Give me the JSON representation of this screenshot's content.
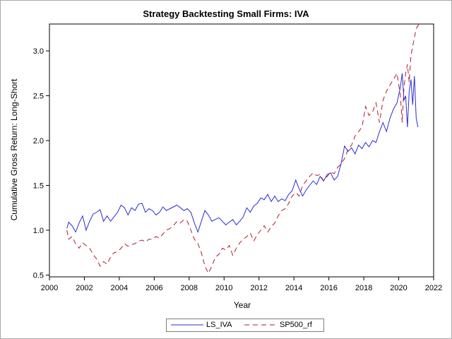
{
  "chart_data": {
    "type": "line",
    "title": "Strategy Backtesting Small Firms: IVA",
    "xlabel": "Year",
    "ylabel": "Cumulative Gross Return: Long-Short",
    "xlim": [
      2000,
      2022
    ],
    "ylim": [
      0.48,
      3.3
    ],
    "x_ticks": [
      2000,
      2002,
      2004,
      2006,
      2008,
      2010,
      2012,
      2014,
      2016,
      2018,
      2020,
      2022
    ],
    "y_ticks": [
      0.5,
      1.0,
      1.5,
      2.0,
      2.5,
      3.0
    ],
    "x_tick_labels": [
      "2000",
      "2002",
      "2004",
      "2006",
      "2008",
      "2010",
      "2012",
      "2014",
      "2016",
      "2018",
      "2020",
      "2022"
    ],
    "y_tick_labels": [
      "0.5",
      "1.0",
      "1.5",
      "2.0",
      "2.5",
      "3.0"
    ],
    "grid": false,
    "legend_position": "bottom",
    "series": [
      {
        "name": "LS_IVA",
        "color": "#2b2bd6",
        "dash": "solid",
        "x": [
          2001.0,
          2001.1,
          2001.3,
          2001.5,
          2001.7,
          2001.9,
          2002.1,
          2002.3,
          2002.5,
          2002.7,
          2002.9,
          2003.1,
          2003.3,
          2003.5,
          2003.7,
          2003.9,
          2004.1,
          2004.3,
          2004.5,
          2004.7,
          2004.9,
          2005.1,
          2005.3,
          2005.5,
          2005.7,
          2005.9,
          2006.1,
          2006.3,
          2006.5,
          2006.7,
          2006.9,
          2007.1,
          2007.3,
          2007.5,
          2007.7,
          2007.9,
          2008.1,
          2008.3,
          2008.5,
          2008.7,
          2008.9,
          2009.1,
          2009.3,
          2009.5,
          2009.7,
          2009.9,
          2010.1,
          2010.3,
          2010.5,
          2010.7,
          2010.9,
          2011.1,
          2011.3,
          2011.5,
          2011.7,
          2011.9,
          2012.1,
          2012.3,
          2012.5,
          2012.7,
          2012.9,
          2013.1,
          2013.3,
          2013.5,
          2013.7,
          2013.9,
          2014.1,
          2014.3,
          2014.5,
          2014.7,
          2014.9,
          2015.1,
          2015.3,
          2015.5,
          2015.7,
          2015.9,
          2016.1,
          2016.3,
          2016.5,
          2016.7,
          2016.9,
          2017.1,
          2017.3,
          2017.5,
          2017.7,
          2017.9,
          2018.1,
          2018.3,
          2018.5,
          2018.7,
          2018.9,
          2019.1,
          2019.3,
          2019.5,
          2019.7,
          2019.9,
          2020.1,
          2020.2,
          2020.3,
          2020.4,
          2020.5,
          2020.6,
          2020.7,
          2020.8,
          2020.9,
          2021.0,
          2021.1
        ],
        "values": [
          1.02,
          1.09,
          1.05,
          0.98,
          1.08,
          1.16,
          1.0,
          1.1,
          1.18,
          1.2,
          1.23,
          1.1,
          1.16,
          1.1,
          1.15,
          1.2,
          1.28,
          1.25,
          1.17,
          1.25,
          1.22,
          1.29,
          1.3,
          1.2,
          1.24,
          1.22,
          1.17,
          1.2,
          1.26,
          1.22,
          1.24,
          1.26,
          1.28,
          1.25,
          1.22,
          1.24,
          1.2,
          1.08,
          0.98,
          1.1,
          1.22,
          1.17,
          1.1,
          1.12,
          1.14,
          1.1,
          1.06,
          1.09,
          1.12,
          1.06,
          1.1,
          1.15,
          1.25,
          1.2,
          1.27,
          1.3,
          1.36,
          1.34,
          1.4,
          1.32,
          1.38,
          1.32,
          1.35,
          1.33,
          1.4,
          1.44,
          1.56,
          1.46,
          1.38,
          1.45,
          1.5,
          1.55,
          1.51,
          1.6,
          1.55,
          1.62,
          1.64,
          1.56,
          1.6,
          1.74,
          1.94,
          1.88,
          1.92,
          1.85,
          1.95,
          1.91,
          1.98,
          1.93,
          2.0,
          1.98,
          2.1,
          2.2,
          2.1,
          2.25,
          2.35,
          2.42,
          2.6,
          2.75,
          2.45,
          2.5,
          2.15,
          2.55,
          2.68,
          2.4,
          2.72,
          2.25,
          2.15
        ]
      },
      {
        "name": "SP500_rf",
        "color": "#b2182b",
        "dash": "dashed",
        "x": [
          2001.0,
          2001.1,
          2001.3,
          2001.5,
          2001.7,
          2001.9,
          2002.1,
          2002.3,
          2002.5,
          2002.7,
          2002.9,
          2003.1,
          2003.3,
          2003.5,
          2003.7,
          2003.9,
          2004.1,
          2004.3,
          2004.5,
          2004.7,
          2004.9,
          2005.1,
          2005.3,
          2005.5,
          2005.7,
          2005.9,
          2006.1,
          2006.3,
          2006.5,
          2006.7,
          2006.9,
          2007.1,
          2007.3,
          2007.5,
          2007.7,
          2007.9,
          2008.1,
          2008.3,
          2008.5,
          2008.7,
          2008.9,
          2009.1,
          2009.3,
          2009.5,
          2009.7,
          2009.9,
          2010.1,
          2010.3,
          2010.5,
          2010.7,
          2010.9,
          2011.1,
          2011.3,
          2011.5,
          2011.7,
          2011.9,
          2012.1,
          2012.3,
          2012.5,
          2012.7,
          2012.9,
          2013.1,
          2013.3,
          2013.5,
          2013.7,
          2013.9,
          2014.1,
          2014.3,
          2014.5,
          2014.7,
          2014.9,
          2015.1,
          2015.3,
          2015.5,
          2015.7,
          2015.9,
          2016.1,
          2016.3,
          2016.5,
          2016.7,
          2016.9,
          2017.1,
          2017.3,
          2017.5,
          2017.7,
          2017.9,
          2018.1,
          2018.3,
          2018.5,
          2018.7,
          2018.9,
          2019.1,
          2019.3,
          2019.5,
          2019.7,
          2019.9,
          2020.1,
          2020.2,
          2020.3,
          2020.4,
          2020.5,
          2020.6,
          2020.7,
          2020.8,
          2020.9,
          2021.0,
          2021.1,
          2021.2
        ],
        "values": [
          1.0,
          0.9,
          0.93,
          0.85,
          0.8,
          0.86,
          0.83,
          0.8,
          0.73,
          0.68,
          0.6,
          0.65,
          0.62,
          0.7,
          0.75,
          0.76,
          0.8,
          0.85,
          0.82,
          0.84,
          0.85,
          0.88,
          0.89,
          0.87,
          0.9,
          0.9,
          0.93,
          0.91,
          0.96,
          1.0,
          1.02,
          1.05,
          1.1,
          1.08,
          1.12,
          1.1,
          1.0,
          0.9,
          0.85,
          0.75,
          0.6,
          0.52,
          0.6,
          0.7,
          0.73,
          0.8,
          0.78,
          0.83,
          0.72,
          0.8,
          0.86,
          0.9,
          0.93,
          0.97,
          0.88,
          0.95,
          1.0,
          1.05,
          0.98,
          1.04,
          1.08,
          1.16,
          1.22,
          1.24,
          1.3,
          1.38,
          1.42,
          1.38,
          1.5,
          1.55,
          1.6,
          1.64,
          1.61,
          1.62,
          1.55,
          1.6,
          1.65,
          1.63,
          1.7,
          1.74,
          1.8,
          1.9,
          1.95,
          2.05,
          2.1,
          2.15,
          2.38,
          2.28,
          2.32,
          2.42,
          2.2,
          2.45,
          2.55,
          2.62,
          2.68,
          2.75,
          2.5,
          2.2,
          2.6,
          2.75,
          2.85,
          2.65,
          2.95,
          3.05,
          3.15,
          3.25,
          3.28,
          3.3
        ]
      }
    ]
  }
}
